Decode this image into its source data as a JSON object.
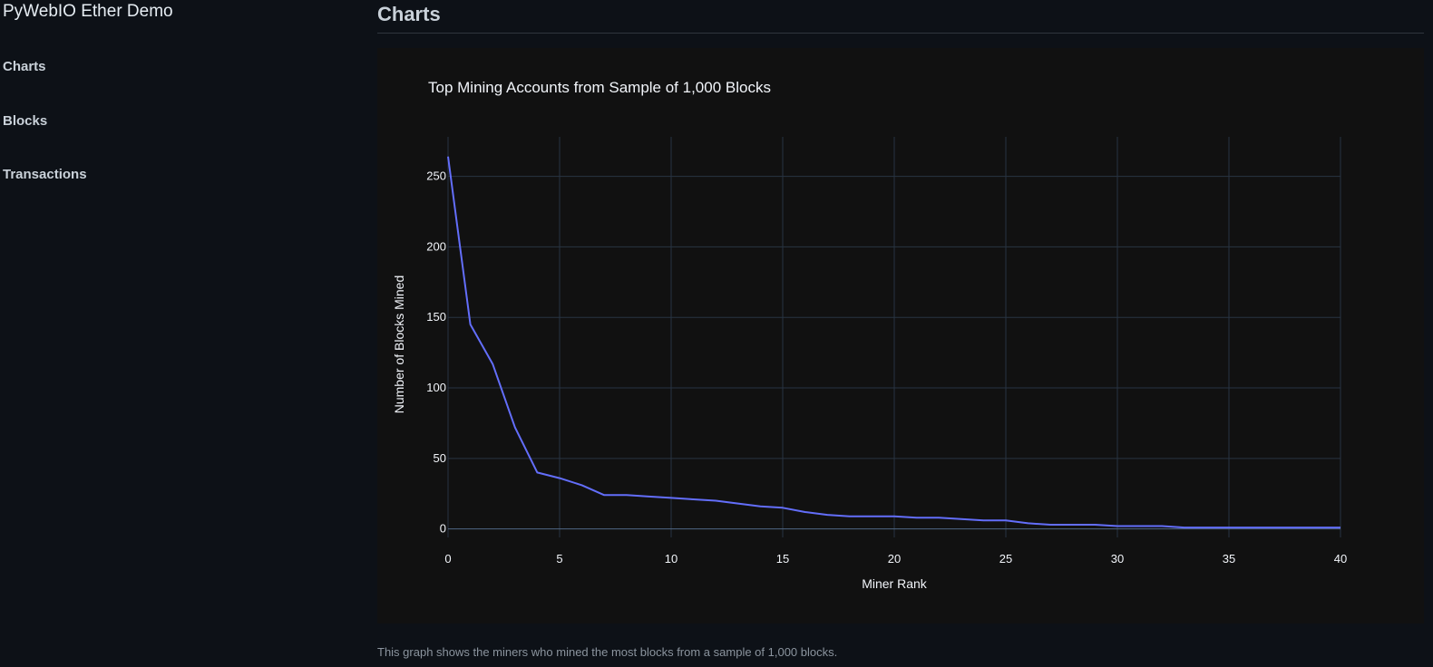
{
  "sidebar": {
    "app_title": "PyWebIO Ether Demo",
    "items": [
      {
        "label": "Charts"
      },
      {
        "label": "Blocks"
      },
      {
        "label": "Transactions"
      }
    ]
  },
  "main": {
    "page_title": "Charts",
    "caption": "This graph shows the miners who mined the most blocks from a sample of 1,000 blocks."
  },
  "colors": {
    "page_bg": "#0d1117",
    "panel_bg": "#111111",
    "grid": "#283442",
    "line": "#636efa",
    "axis_text": "#f2f5fa"
  },
  "chart_data": {
    "type": "line",
    "title": "Top Mining Accounts from Sample of 1,000 Blocks",
    "xlabel": "Miner Rank",
    "ylabel": "Number of Blocks Mined",
    "xlim": [
      0,
      40
    ],
    "ylim": [
      -6,
      278
    ],
    "xticks": [
      0,
      5,
      10,
      15,
      20,
      25,
      30,
      35,
      40
    ],
    "yticks": [
      0,
      50,
      100,
      150,
      200,
      250
    ],
    "grid": true,
    "series": [
      {
        "x": [
          0,
          1,
          2,
          3,
          4,
          5,
          6,
          7,
          8,
          9,
          10,
          11,
          12,
          13,
          14,
          15,
          16,
          17,
          18,
          19,
          20,
          21,
          22,
          23,
          24,
          25,
          26,
          27,
          28,
          29,
          30,
          31,
          32,
          33,
          34,
          35,
          36,
          37,
          38,
          39,
          40
        ],
        "values": [
          264,
          145,
          117,
          72,
          40,
          36,
          31,
          24,
          24,
          23,
          22,
          21,
          20,
          18,
          16,
          15,
          12,
          10,
          9,
          9,
          9,
          8,
          8,
          7,
          6,
          6,
          4,
          3,
          3,
          3,
          2,
          2,
          2,
          1,
          1,
          1,
          1,
          1,
          1,
          1,
          1
        ]
      }
    ]
  }
}
